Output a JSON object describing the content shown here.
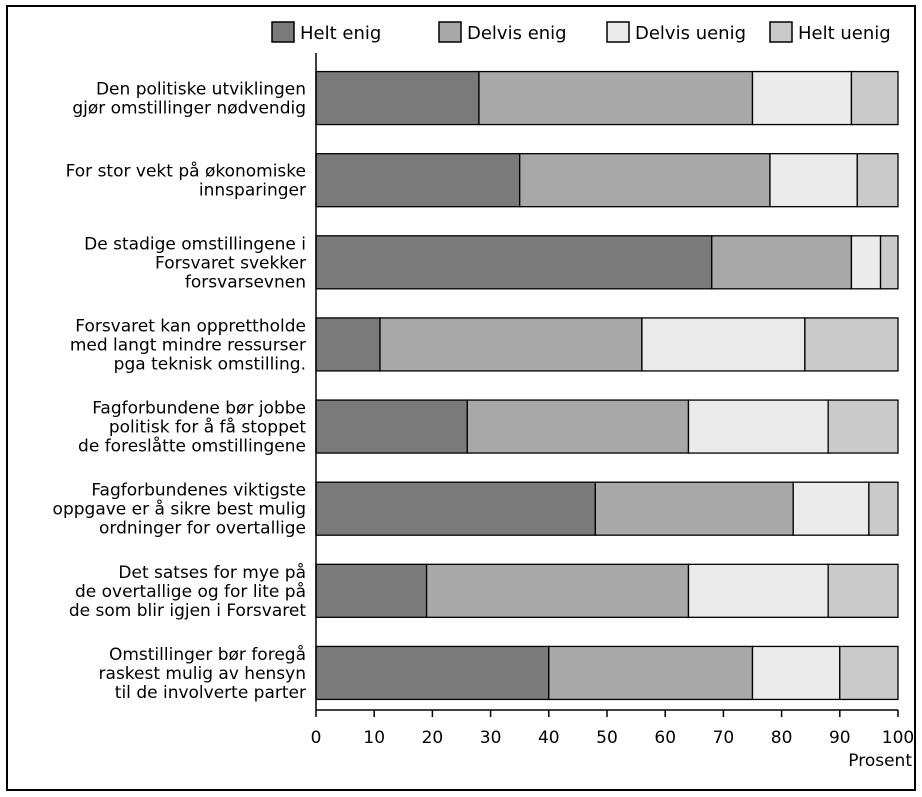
{
  "chart_data": {
    "type": "bar",
    "orientation": "horizontal",
    "stacked": true,
    "categories": [
      [
        "Den politiske utviklingen",
        "gjør omstillinger nødvendig"
      ],
      [
        "For stor vekt på økonomiske",
        "innsparinger"
      ],
      [
        "De stadige omstillingene i",
        "Forsvaret svekker",
        "forsvarsevnen"
      ],
      [
        "Forsvaret kan opprettholde",
        "med langt mindre ressurser",
        "pga teknisk omstilling."
      ],
      [
        "Fagforbundene bør jobbe",
        "politisk for å få stoppet",
        "de foreslåtte omstillingene"
      ],
      [
        "Fagforbundenes viktigste",
        "oppgave er å sikre best mulig",
        "ordninger  for overtallige"
      ],
      [
        "Det satses for mye på",
        "de overtallige og for lite på",
        "de som blir igjen i Forsvaret"
      ],
      [
        "Omstillinger bør foregå",
        "raskest mulig av hensyn",
        "til de involverte parter"
      ]
    ],
    "series": [
      {
        "name": "Helt enig",
        "color": "#7a7a7a",
        "values": [
          28,
          35,
          68,
          11,
          26,
          48,
          19,
          40
        ]
      },
      {
        "name": "Delvis enig",
        "color": "#a8a8a8",
        "values": [
          47,
          43,
          24,
          45,
          38,
          34,
          45,
          35
        ]
      },
      {
        "name": "Delvis uenig",
        "color": "#ebebeb",
        "values": [
          17,
          15,
          5,
          28,
          24,
          13,
          24,
          15
        ]
      },
      {
        "name": "Helt uenig",
        "color": "#cacaca",
        "values": [
          8,
          7,
          3,
          16,
          12,
          5,
          12,
          10
        ]
      }
    ],
    "xlim": [
      0,
      100
    ],
    "xticks": [
      "0",
      "10",
      "20",
      "30",
      "40",
      "50",
      "60",
      "70",
      "80",
      "90",
      "100"
    ],
    "xlabel": "Prosent",
    "legend_position": "top",
    "grid": false
  }
}
